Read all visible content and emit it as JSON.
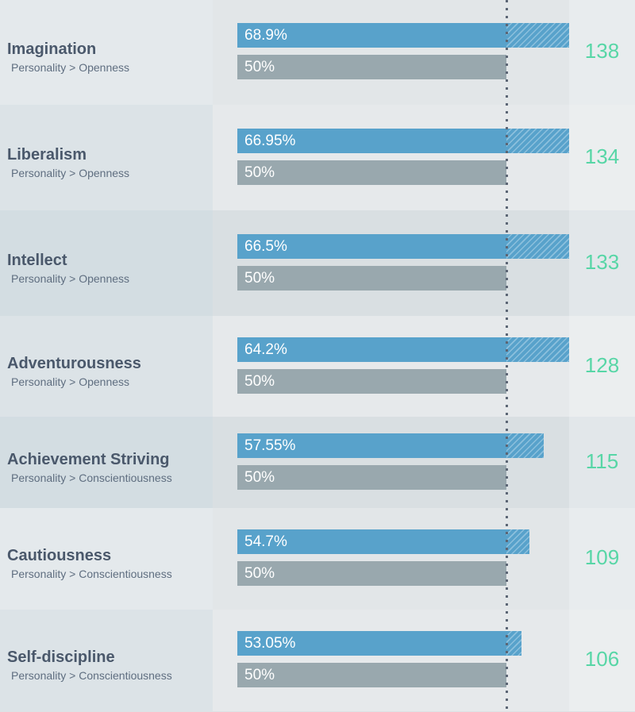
{
  "chart_data": {
    "type": "bar",
    "reference_value": 50,
    "categories": [
      "Imagination",
      "Liberalism",
      "Intellect",
      "Adventurousness",
      "Achievement Striving",
      "Cautiousness",
      "Self-discipline"
    ],
    "rows": [
      {
        "title": "Imagination",
        "subtitle": "Personality > Openness",
        "value": 68.9,
        "value_label": "68.9%",
        "baseline_label": "50%",
        "score": "138"
      },
      {
        "title": "Liberalism",
        "subtitle": "Personality > Openness",
        "value": 66.95,
        "value_label": "66.95%",
        "baseline_label": "50%",
        "score": "134"
      },
      {
        "title": "Intellect",
        "subtitle": "Personality > Openness",
        "value": 66.5,
        "value_label": "66.5%",
        "baseline_label": "50%",
        "score": "133"
      },
      {
        "title": "Adventurousness",
        "subtitle": "Personality > Openness",
        "value": 64.2,
        "value_label": "64.2%",
        "baseline_label": "50%",
        "score": "128"
      },
      {
        "title": "Achievement Striving",
        "subtitle": "Personality > Conscientiousness",
        "value": 57.55,
        "value_label": "57.55%",
        "baseline_label": "50%",
        "score": "115"
      },
      {
        "title": "Cautiousness",
        "subtitle": "Personality > Conscientiousness",
        "value": 54.7,
        "value_label": "54.7%",
        "baseline_label": "50%",
        "score": "109"
      },
      {
        "title": "Self-discipline",
        "subtitle": "Personality > Conscientiousness",
        "value": 53.05,
        "value_label": "53.05%",
        "baseline_label": "50%",
        "score": "106"
      }
    ]
  },
  "colors": {
    "value_bar": "#58a2cb",
    "baseline_bar": "#99a8ae",
    "score": "#57d6a6"
  }
}
